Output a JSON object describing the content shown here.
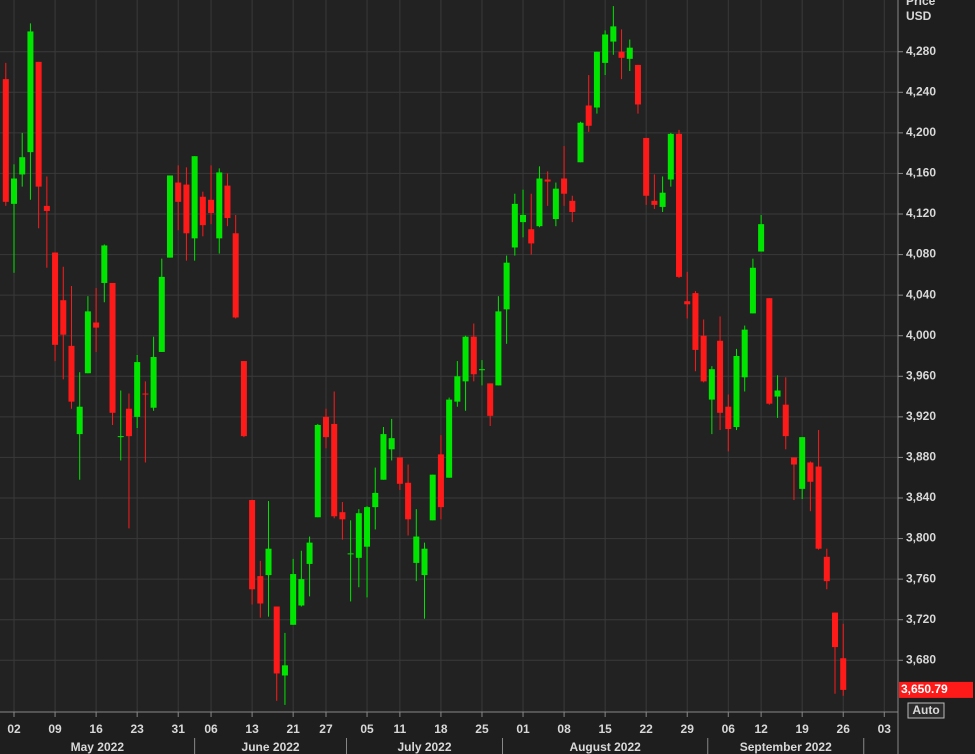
{
  "chart_data": {
    "type": "candlestick",
    "y_axis_label_lines": [
      "Price",
      "USD"
    ],
    "categories": [
      null,
      "02",
      null,
      null,
      null,
      null,
      "09",
      null,
      null,
      null,
      null,
      "16",
      null,
      null,
      null,
      null,
      "23",
      null,
      null,
      null,
      null,
      "31",
      null,
      null,
      null,
      "06",
      null,
      null,
      null,
      null,
      "13",
      null,
      null,
      null,
      null,
      "21",
      null,
      null,
      null,
      "27",
      null,
      null,
      null,
      null,
      "05",
      null,
      null,
      null,
      "11",
      null,
      null,
      null,
      null,
      "18",
      null,
      null,
      null,
      null,
      "25",
      null,
      null,
      null,
      null,
      "01",
      null,
      null,
      null,
      null,
      "08",
      null,
      null,
      null,
      null,
      "15",
      null,
      null,
      null,
      null,
      "22",
      null,
      null,
      null,
      null,
      "29",
      null,
      null,
      null,
      null,
      "06",
      null,
      null,
      null,
      "12",
      null,
      null,
      null,
      null,
      "19",
      null,
      null,
      null,
      null,
      "26",
      null,
      null,
      null,
      null,
      "03"
    ],
    "months": [
      "May 2022",
      "June 2022",
      "July 2022",
      "August 2022",
      "September 2022"
    ],
    "open": [
      4253,
      4130,
      4159,
      4181,
      4270,
      4128,
      4082,
      4035,
      3990,
      3903,
      3963,
      4013,
      4052,
      4052,
      3900,
      3928,
      3920,
      3943,
      3929,
      3984,
      4077,
      4151,
      4149,
      4096,
      4137,
      4134,
      4096,
      4148,
      4101,
      3975,
      3838,
      3763,
      3764,
      3733,
      3665,
      3715,
      3734,
      3775,
      3821,
      3920,
      3913,
      3826,
      3785,
      3781,
      3792,
      3831,
      3858,
      3888,
      3880,
      3855,
      3776,
      3764,
      3818,
      3883,
      3860,
      3935,
      3955,
      3999,
      3966,
      3953,
      3951,
      4026,
      4087,
      4112,
      4105,
      4108,
      4154,
      4115,
      4155,
      4133,
      4171,
      4227,
      4225,
      4269,
      4290,
      4280,
      4273,
      4267,
      4195,
      4133,
      4127,
      4154,
      4199,
      4034,
      4042,
      4000,
      3937,
      3995,
      3930,
      3910,
      3959,
      4022,
      4083,
      4037,
      3940,
      3932,
      3880,
      3849,
      3875,
      3871,
      3782,
      3727,
      3682,
      null,
      null,
      null,
      null,
      null
    ],
    "high": [
      4269,
      4169,
      4200,
      4308,
      4270,
      4157,
      4082,
      4068,
      4049,
      3964,
      4039,
      4047,
      4090,
      4052,
      3946,
      3943,
      3981,
      3955,
      3999,
      4076,
      4158,
      4168,
      4166,
      4177,
      4142,
      4168,
      4165,
      4160,
      4119,
      3975,
      3838,
      3778,
      3837,
      3733,
      3707,
      3780,
      3788,
      3802,
      3913,
      3928,
      3945,
      3836,
      3818,
      3829,
      3832,
      3870,
      3910,
      3918,
      3880,
      3873,
      3829,
      3796,
      3863,
      3902,
      3939,
      3975,
      4000,
      4012,
      3976,
      3953,
      4039,
      4079,
      4140,
      4144,
      4140,
      4167,
      4162,
      4151,
      4187,
      4138,
      4211,
      4257,
      4280,
      4301,
      4325,
      4302,
      4292,
      4267,
      4195,
      4159,
      4157,
      4200,
      4203,
      4063,
      4044,
      4016,
      3970,
      4019,
      3942,
      3987,
      4010,
      4076,
      4119,
      4037,
      3961,
      3959,
      3880,
      3900,
      3876,
      3907,
      3790,
      3727,
      3716,
      null,
      null,
      null,
      null,
      null
    ],
    "low": [
      4128,
      4062,
      4147,
      4134,
      4106,
      4067,
      3975,
      3957,
      3928,
      3858,
      3963,
      3984,
      4033,
      3912,
      3877,
      3810,
      3909,
      3875,
      3926,
      3984,
      4077,
      4104,
      4074,
      4074,
      4098,
      4110,
      4081,
      4108,
      4017,
      3900,
      3735,
      3722,
      3723,
      3640,
      3636,
      3715,
      3733,
      3743,
      3821,
      3889,
      3820,
      3799,
      3738,
      3752,
      3742,
      3809,
      3858,
      3877,
      3848,
      3803,
      3758,
      3721,
      3818,
      3819,
      3860,
      3930,
      3926,
      3955,
      3951,
      3911,
      3951,
      3992,
      4079,
      4097,
      4080,
      4107,
      4128,
      4108,
      4128,
      4112,
      4171,
      4201,
      4219,
      4257,
      4277,
      4253,
      4261,
      4219,
      4129,
      4125,
      4122,
      4147,
      4057,
      4017,
      3965,
      3954,
      3903,
      3907,
      3886,
      3907,
      3945,
      4022,
      4083,
      3932,
      3919,
      3888,
      3838,
      3839,
      3827,
      3789,
      3750,
      3647,
      3645,
      null,
      null,
      null,
      null,
      null
    ],
    "close": [
      4132,
      4155,
      4176,
      4300,
      4147,
      4123,
      3991,
      4001,
      3935,
      3930,
      4024,
      4008,
      4089,
      3924,
      3901,
      3901,
      3974,
      3942,
      3979,
      4058,
      4158,
      4132,
      4101,
      4177,
      4109,
      4121,
      4161,
      4116,
      4018,
      3901,
      3750,
      3736,
      3790,
      3667,
      3675,
      3765,
      3760,
      3796,
      3912,
      3900,
      3822,
      3819,
      3785.4,
      3825,
      3831,
      3845,
      3903,
      3899,
      3854,
      3819,
      3802,
      3790,
      3863,
      3831,
      3937,
      3960,
      3999,
      3962,
      3967,
      3921,
      4024,
      4072,
      4130,
      4119,
      4091,
      4155,
      4152,
      4145,
      4140,
      4122,
      4210,
      4207,
      4280,
      4297,
      4305,
      4274,
      4284,
      4228,
      4138,
      4129,
      4141,
      4199,
      4058,
      4031,
      3986,
      3955,
      3967,
      3924,
      3908,
      3980,
      4006,
      4067,
      4110,
      3933,
      3946,
      3901,
      3873,
      3900,
      3856,
      3790,
      3758,
      3693,
      3650.79,
      null,
      null,
      null,
      null,
      null
    ],
    "last_price_label": "3,650.79",
    "up_color": "#00e600",
    "down_color": "#ff1a1a",
    "ylim": [
      3629,
      4331
    ],
    "yticks": [
      {
        "value": 3680,
        "label": "3,680"
      },
      {
        "value": 3720,
        "label": "3,720"
      },
      {
        "value": 3760,
        "label": "3,760"
      },
      {
        "value": 3800,
        "label": "3,800"
      },
      {
        "value": 3840,
        "label": "3,840"
      },
      {
        "value": 3880,
        "label": "3,880"
      },
      {
        "value": 3920,
        "label": "3,920"
      },
      {
        "value": 3960,
        "label": "3,960"
      },
      {
        "value": 4000,
        "label": "4,000"
      },
      {
        "value": 4040,
        "label": "4,040"
      },
      {
        "value": 4080,
        "label": "4,080"
      },
      {
        "value": 4120,
        "label": "4,120"
      },
      {
        "value": 4160,
        "label": "4,160"
      },
      {
        "value": 4200,
        "label": "4,200"
      },
      {
        "value": 4240,
        "label": "4,240"
      },
      {
        "value": 4280,
        "label": "4,280"
      }
    ],
    "grid": true,
    "scale_button": "Auto"
  }
}
